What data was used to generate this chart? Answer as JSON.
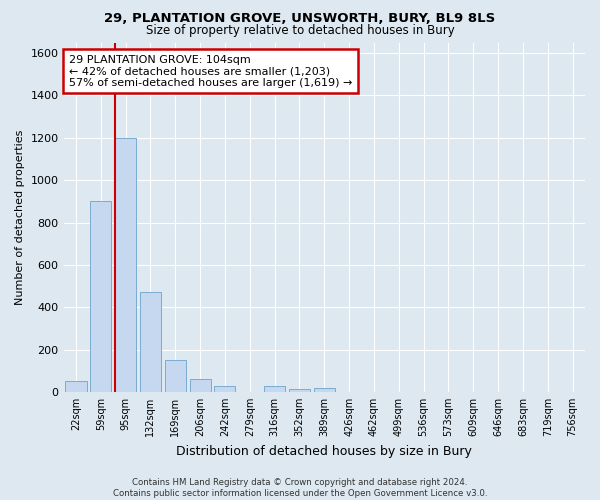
{
  "title1": "29, PLANTATION GROVE, UNSWORTH, BURY, BL9 8LS",
  "title2": "Size of property relative to detached houses in Bury",
  "xlabel": "Distribution of detached houses by size in Bury",
  "ylabel": "Number of detached properties",
  "categories": [
    "22sqm",
    "59sqm",
    "95sqm",
    "132sqm",
    "169sqm",
    "206sqm",
    "242sqm",
    "279sqm",
    "316sqm",
    "352sqm",
    "389sqm",
    "426sqm",
    "462sqm",
    "499sqm",
    "536sqm",
    "573sqm",
    "609sqm",
    "646sqm",
    "683sqm",
    "719sqm",
    "756sqm"
  ],
  "values": [
    50,
    900,
    1200,
    470,
    150,
    60,
    30,
    0,
    30,
    15,
    20,
    0,
    0,
    0,
    0,
    0,
    0,
    0,
    0,
    0,
    0
  ],
  "bar_color": "#c5d8ef",
  "bar_edge_color": "#7aabcf",
  "vline_color": "#cc0000",
  "annotation_line1": "29 PLANTATION GROVE: 104sqm",
  "annotation_line2": "← 42% of detached houses are smaller (1,203)",
  "annotation_line3": "57% of semi-detached houses are larger (1,619) →",
  "annotation_box_color": "#ffffff",
  "annotation_box_edge": "#cc0000",
  "ylim": [
    0,
    1650
  ],
  "yticks": [
    0,
    200,
    400,
    600,
    800,
    1000,
    1200,
    1400,
    1600
  ],
  "background_color": "#dde8f0",
  "footer": "Contains HM Land Registry data © Crown copyright and database right 2024.\nContains public sector information licensed under the Open Government Licence v3.0."
}
